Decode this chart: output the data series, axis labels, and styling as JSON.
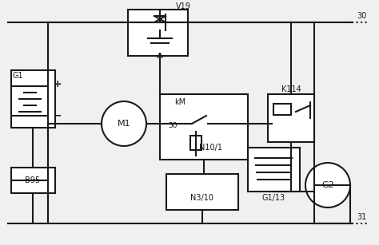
{
  "bg_color": "#f0f0f0",
  "line_color": "#1a1a1a",
  "line_width": 1.5,
  "fig_width": 4.74,
  "fig_height": 3.07,
  "labels": {
    "G1": "G1",
    "B95": "B95",
    "M1": "M1",
    "kM": "kM",
    "N10_1": "N10/1",
    "N3_10": "N3/10",
    "K114": "K114",
    "G1_13": "G1/13",
    "G2": "G2",
    "V19": "V19",
    "num30": "30",
    "num31": "31",
    "num50": "50"
  }
}
